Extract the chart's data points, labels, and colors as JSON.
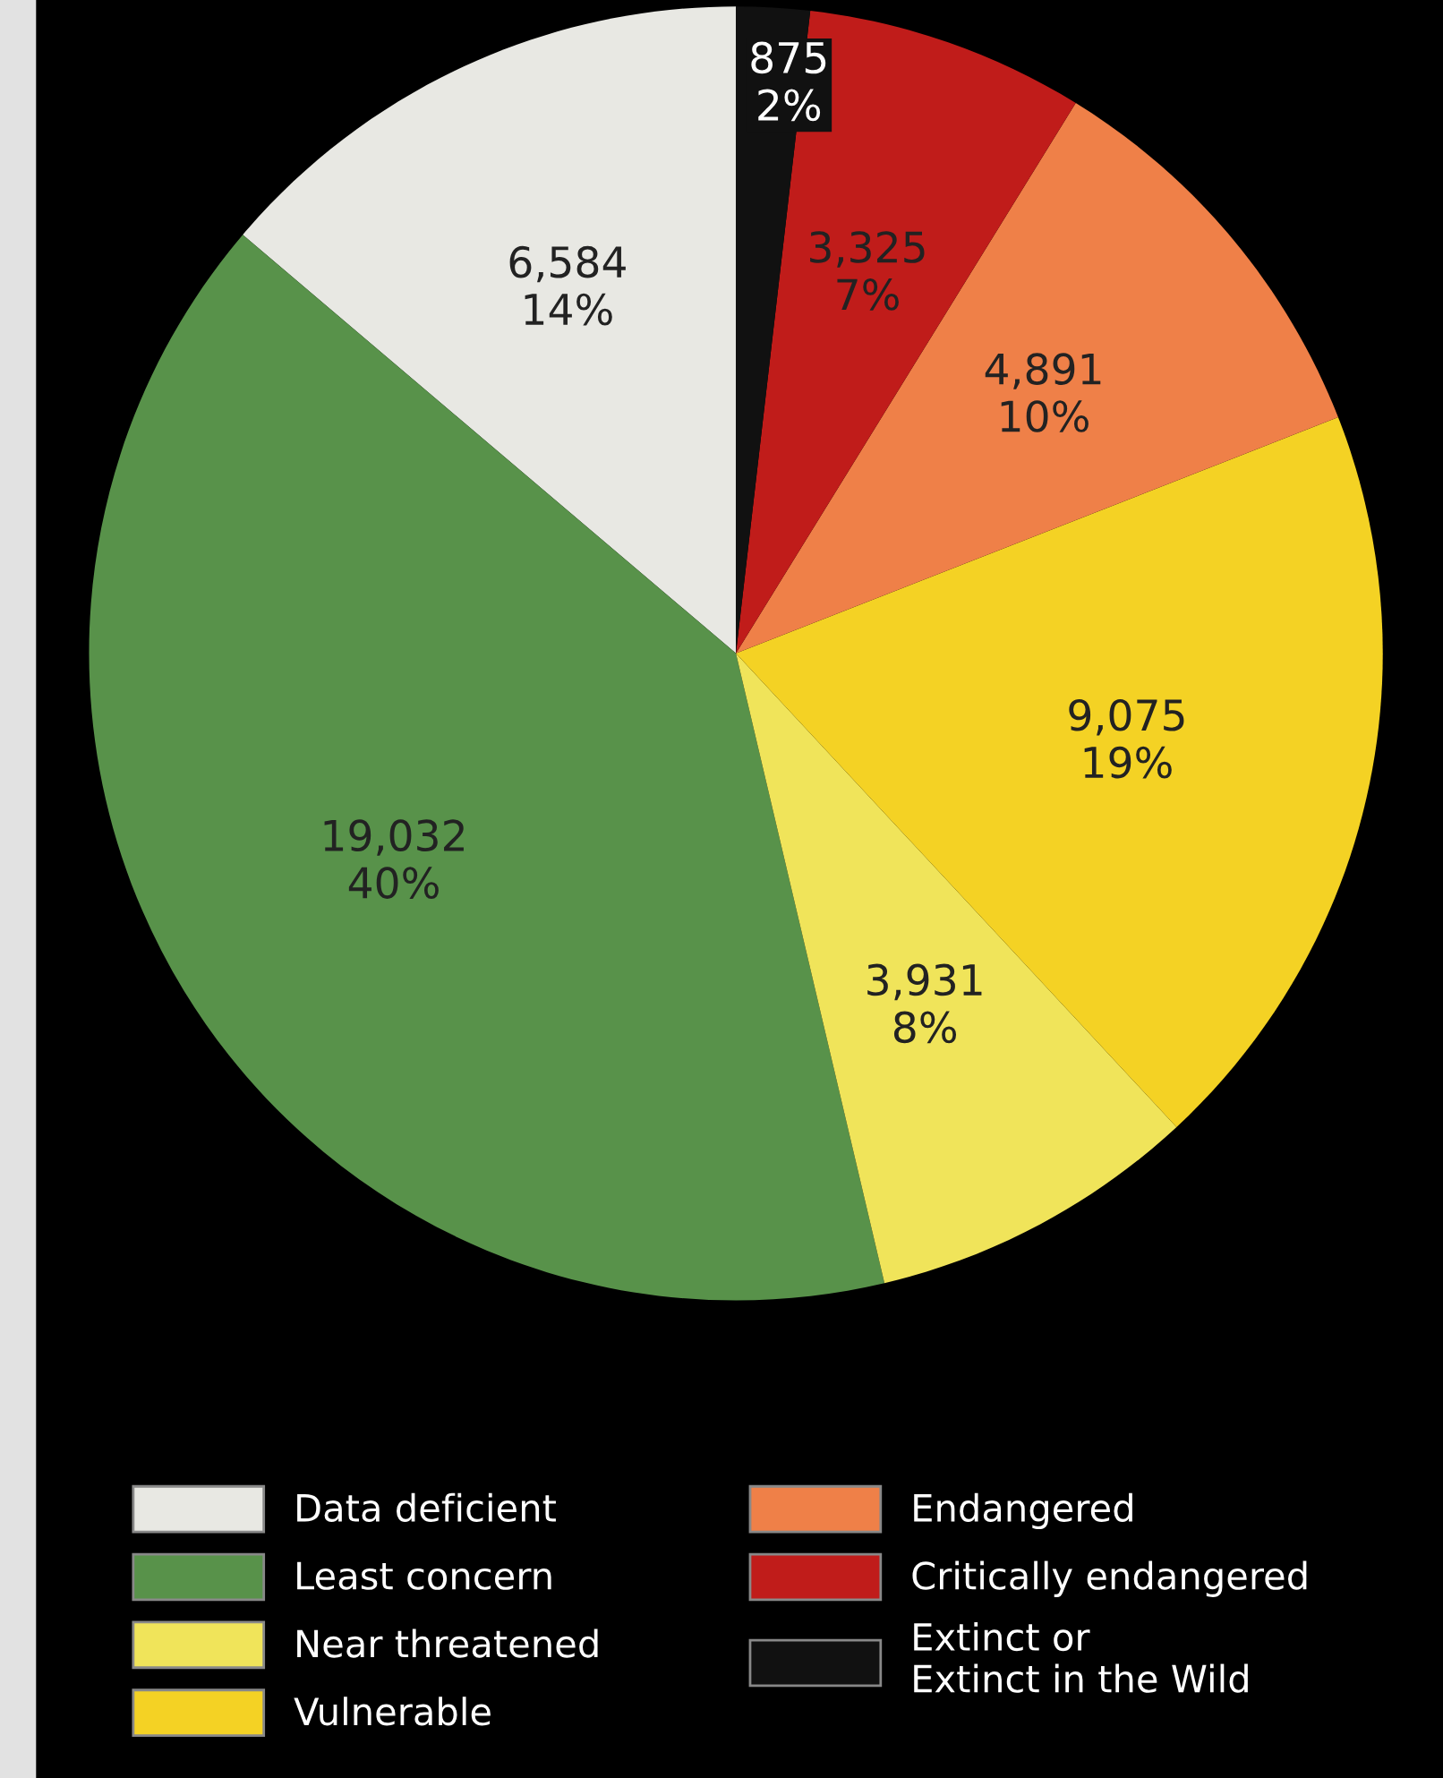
{
  "chart_data": {
    "type": "pie",
    "categories": [
      "Data deficient",
      "Least concern",
      "Near threatened",
      "Vulnerable",
      "Endangered",
      "Critically endangered",
      "Extinct or\nExtinct in the Wild"
    ],
    "values": [
      6584,
      19032,
      3931,
      9075,
      4891,
      3325,
      875
    ],
    "value_labels": [
      "6,584\n14%",
      "19,032\n40%",
      "3,931\n8%",
      "9,075\n19%",
      "4,891\n10%",
      "3,325\n7%",
      "875\n2%"
    ],
    "colors": [
      "#e8e8e3",
      "#58924a",
      "#f0e45a",
      "#f4d224",
      "#ef8048",
      "#c01c1a",
      "#111111"
    ],
    "legend": "bottom"
  }
}
